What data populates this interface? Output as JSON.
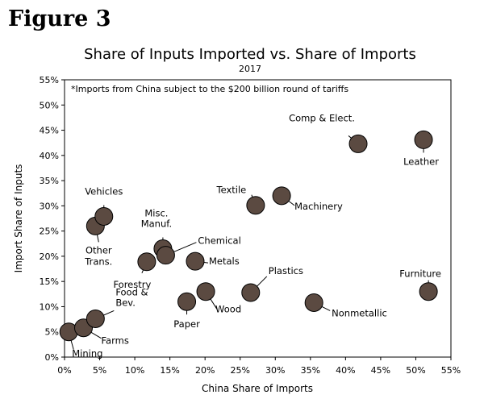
{
  "figure_label": "Figure 3",
  "chart_data": {
    "type": "scatter",
    "title": "Share of Inputs Imported vs. Share of Imports",
    "subtitle": "2017",
    "note": "*Imports from China subject to the $200 billion round of tariffs",
    "xlabel": "China Share of Imports",
    "ylabel": "Import Share of Inputs",
    "xlim": [
      0,
      55
    ],
    "ylim": [
      0,
      55
    ],
    "x_ticks": [
      "0%",
      "5%",
      "10%",
      "15%",
      "20%",
      "25%",
      "30%",
      "35%",
      "40%",
      "45%",
      "50%",
      "55%"
    ],
    "y_ticks": [
      "0%",
      "5%",
      "10%",
      "15%",
      "20%",
      "25%",
      "30%",
      "35%",
      "40%",
      "45%",
      "50%",
      "55%"
    ],
    "grid": false,
    "marker_color": "#5b4a41",
    "points": [
      {
        "label": "Mining",
        "x": 0.6,
        "y": 5.0
      },
      {
        "label": "Farms",
        "x": 2.7,
        "y": 5.8
      },
      {
        "label": "Food & Bev.",
        "x": 4.4,
        "y": 7.6
      },
      {
        "label": "Other Trans.",
        "x": 4.4,
        "y": 26.0
      },
      {
        "label": "Vehicles",
        "x": 5.6,
        "y": 27.9
      },
      {
        "label": "Forestry",
        "x": 11.7,
        "y": 18.9
      },
      {
        "label": "Misc. Manuf.",
        "x": 14.0,
        "y": 21.5
      },
      {
        "label": "Chemical",
        "x": 14.4,
        "y": 20.2
      },
      {
        "label": "Paper",
        "x": 17.4,
        "y": 11.0
      },
      {
        "label": "Metals",
        "x": 18.6,
        "y": 19.0
      },
      {
        "label": "Wood",
        "x": 20.1,
        "y": 13.0
      },
      {
        "label": "Plastics",
        "x": 26.5,
        "y": 12.8
      },
      {
        "label": "Textile",
        "x": 27.2,
        "y": 30.1
      },
      {
        "label": "Machinery",
        "x": 30.9,
        "y": 32.0
      },
      {
        "label": "Nonmetallic",
        "x": 35.5,
        "y": 10.8
      },
      {
        "label": "Comp & Elect.",
        "x": 41.8,
        "y": 42.3
      },
      {
        "label": "Leather",
        "x": 51.1,
        "y": 43.1
      },
      {
        "label": "Furniture",
        "x": 51.8,
        "y": 13.0
      }
    ]
  }
}
